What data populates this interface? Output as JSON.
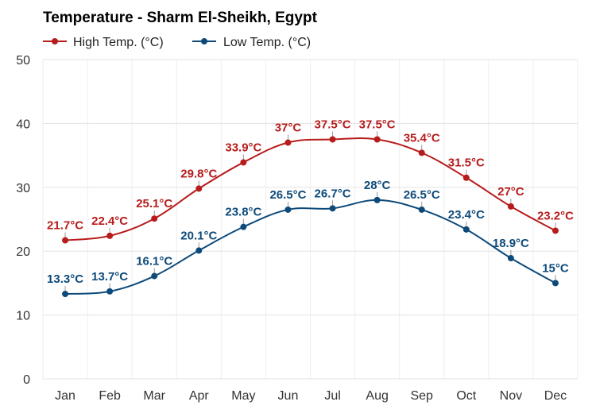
{
  "chart_data": {
    "type": "line",
    "title": "Temperature - Sharm El-Sheikh, Egypt",
    "categories": [
      "Jan",
      "Feb",
      "Mar",
      "Apr",
      "May",
      "Jun",
      "Jul",
      "Aug",
      "Sep",
      "Oct",
      "Nov",
      "Dec"
    ],
    "ylim": [
      0,
      50
    ],
    "yticks": [
      "0",
      "10",
      "20",
      "30",
      "40",
      "50"
    ],
    "grid": true,
    "legend_position": "top-left",
    "series": [
      {
        "name": "High Temp. (°C)",
        "color": "#b71c1c",
        "values": [
          21.7,
          22.4,
          25.1,
          29.8,
          33.9,
          37,
          37.5,
          37.5,
          35.4,
          31.5,
          27,
          23.2
        ],
        "labels": [
          "21.7°C",
          "22.4°C",
          "25.1°C",
          "29.8°C",
          "33.9°C",
          "37°C",
          "37.5°C",
          "37.5°C",
          "35.4°C",
          "31.5°C",
          "27°C",
          "23.2°C"
        ]
      },
      {
        "name": "Low Temp. (°C)",
        "color": "#0d4a7a",
        "values": [
          13.3,
          13.7,
          16.1,
          20.1,
          23.8,
          26.5,
          26.7,
          28,
          26.5,
          23.4,
          18.9,
          15
        ],
        "labels": [
          "13.3°C",
          "13.7°C",
          "16.1°C",
          "20.1°C",
          "23.8°C",
          "26.5°C",
          "26.7°C",
          "28°C",
          "26.5°C",
          "23.4°C",
          "18.9°C",
          "15°C"
        ]
      }
    ]
  }
}
